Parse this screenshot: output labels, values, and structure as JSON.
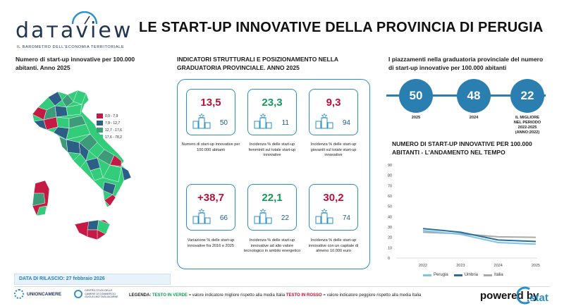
{
  "logo": {
    "word": "daтaview",
    "sub": "IL BAROMETRO DELL'ECONOMIA TERRITORIALE"
  },
  "title": "LE START-UP INNOVATIVE DELLA PROVINCIA DI PERUGIA",
  "map_section": {
    "title_line1": "Numero di start-up innovative per 100.000",
    "title_line2": "abitanti. Anno 2025",
    "legend": [
      {
        "label": "0,0 - 7,9",
        "color": "#c41a44"
      },
      {
        "label": "7,9 - 12,7",
        "color": "#2c5f86"
      },
      {
        "label": "12,7 - 17,6",
        "color": "#3e9b7a"
      },
      {
        "label": "17,6 - 78,2",
        "color": "#33cc7a"
      }
    ]
  },
  "indicators": {
    "title_line1": "INDICATORI STRUTTURALI E POSIZIONAMENTO NELLA",
    "title_line2": "GRADUATORIA PROVINCIALE. ANNO 2025",
    "cards": [
      {
        "value": "13,5",
        "tone": "red",
        "rank": "50",
        "desc": "Numero di start-up innovative per 100.000 abitanti"
      },
      {
        "value": "23,3",
        "tone": "green",
        "rank": "11",
        "desc": "Incidenza % delle start-up femminili sul totale start-up innovative"
      },
      {
        "value": "9,3",
        "tone": "red",
        "rank": "94",
        "desc": "Incidenza % delle start-up giovanili sul totale start-up innovative"
      },
      {
        "value": "+38,7",
        "tone": "red",
        "rank": "66",
        "desc": "Variazione % delle start-up innovative fra 2016 e 2025"
      },
      {
        "value": "22,1",
        "tone": "green",
        "rank": "22",
        "desc": "Incidenza % delle start-up innovative ad alto valore tecnologico in ambito energetico"
      },
      {
        "value": "30,2",
        "tone": "red",
        "rank": "74",
        "desc": "Incidenza % delle start-up innovative con un capitale di almeno 10.000 euro"
      }
    ]
  },
  "ranking": {
    "title_line1": "I piazzamenti nella graduatoria provinciale del numero",
    "title_line2": "di start-up innovative per 100.000 abitanti",
    "circles": [
      {
        "value": "50",
        "label": "2025"
      },
      {
        "value": "48",
        "label": "2024"
      },
      {
        "value": "22",
        "label_lines": [
          "IL MIGLIORE",
          "NEL PERIODO",
          "2022-2025",
          "(ANNO:2022)"
        ]
      }
    ]
  },
  "trend": {
    "title_line1": "NUMERO DI START-UP INNOVATIVE PER 100.000",
    "title_line2": "ABITANTI - L'ANDAMENTO NEL TEMPO"
  },
  "chart_data": {
    "type": "line",
    "x": [
      "2022",
      "2023",
      "2024",
      "2025"
    ],
    "series": [
      {
        "name": "Perugia",
        "values": [
          26.5,
          23.0,
          15.0,
          13.5
        ],
        "color": "#7fc4e8"
      },
      {
        "name": "Umbria",
        "values": [
          28.5,
          25.0,
          17.5,
          16.0
        ],
        "color": "#2a6f9c"
      },
      {
        "name": "Italia",
        "values": [
          25.0,
          23.5,
          20.5,
          20.0
        ],
        "color": "#a9a9a9"
      }
    ],
    "ylim": [
      0,
      90
    ],
    "yticks": [
      0,
      10,
      20,
      30,
      40,
      50,
      60,
      70,
      80,
      90
    ],
    "grid": false,
    "legend": "bottom"
  },
  "footer": {
    "release": "DATA DI RILASCIO: 27 febbraio 2026",
    "unioncamere": "UNIONCAMERE",
    "centro_lines": [
      "CENTRO STUDI DELLE",
      "CAMERE DI COMMERCIO",
      "GUGLIELMO TAGLIACARNE"
    ],
    "legenda_label": "LEGENDA:",
    "legenda_green": "TESTO IN VERDE",
    "legenda_mid": " = valore indicatore migliore rispetto alla media Italia ",
    "legenda_red": "TESTO IN ROSSO",
    "legenda_end": " = valore indicatore peggiore rispetto alla media Italia",
    "powered": "powered by",
    "cstat": ".stat"
  }
}
